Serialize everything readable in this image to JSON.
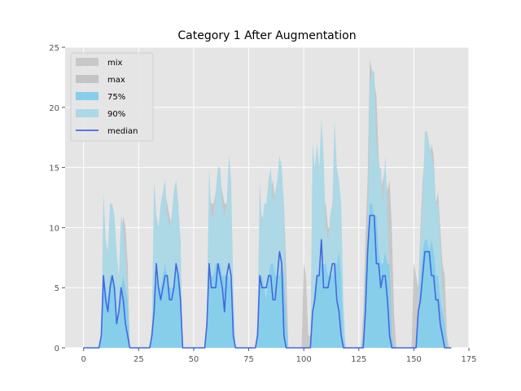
{
  "chart_data": {
    "type": "area",
    "title": "Category 1 After Augmentation",
    "xlabel": "",
    "ylabel": "",
    "xlim": [
      -8.4,
      175
    ],
    "ylim": [
      0,
      25
    ],
    "xticks": [
      0,
      25,
      50,
      75,
      100,
      125,
      150,
      175
    ],
    "yticks": [
      0,
      5,
      10,
      15,
      20,
      25
    ],
    "grid": true,
    "legend_position": "upper-left",
    "legend": [
      {
        "label": "mix",
        "kind": "patch",
        "series": "mix"
      },
      {
        "label": "max",
        "kind": "patch",
        "series": "max"
      },
      {
        "label": "75%",
        "kind": "patch",
        "series": "p75"
      },
      {
        "label": "90%",
        "kind": "patch",
        "series": "p90"
      },
      {
        "label": "median",
        "kind": "line",
        "series": "median"
      }
    ],
    "colors": {
      "background": "#e5e5e5",
      "grid": "#ffffff",
      "mix": "#c8c8c8",
      "max": "#c4c4c4",
      "p75": "#87ceeb",
      "p90": "#add8e6",
      "median": "#4169e1",
      "tick_text": "#555555"
    },
    "series": {
      "mix": {
        "x": [
          0,
          7,
          8,
          9,
          10,
          11,
          12,
          13,
          14,
          15,
          16,
          17,
          18,
          19,
          20,
          21,
          30,
          31,
          32,
          33,
          34,
          35,
          36,
          37,
          38,
          39,
          40,
          41,
          42,
          43,
          44,
          45,
          55,
          56,
          57,
          58,
          59,
          60,
          61,
          62,
          63,
          64,
          65,
          66,
          67,
          68,
          69,
          78,
          79,
          80,
          81,
          82,
          83,
          84,
          85,
          86,
          87,
          88,
          89,
          90,
          91,
          92,
          93,
          99,
          100,
          101,
          102,
          103,
          104,
          105,
          106,
          107,
          108,
          109,
          110,
          111,
          112,
          113,
          114,
          115,
          116,
          117,
          118,
          119,
          126,
          127,
          128,
          129,
          130,
          131,
          132,
          133,
          134,
          135,
          136,
          137,
          138,
          139,
          140,
          141,
          142,
          149,
          150,
          151,
          152,
          153,
          154,
          155,
          156,
          157,
          158,
          159,
          160,
          161,
          162,
          163,
          164,
          165,
          166,
          167
        ],
        "y": [
          0,
          0,
          1,
          7,
          7,
          6,
          8,
          8,
          8,
          6,
          4,
          7,
          8,
          7,
          6,
          0,
          0,
          2,
          8,
          8,
          7,
          7,
          8,
          9,
          9,
          8,
          7,
          7,
          9,
          8,
          6,
          0,
          0,
          3,
          9,
          9,
          9,
          10,
          10,
          10,
          9,
          9,
          9,
          9,
          8,
          3,
          0,
          0,
          2,
          8,
          8,
          7,
          6,
          8,
          9,
          10,
          8,
          9,
          9,
          10,
          8,
          5,
          0,
          0,
          7,
          6,
          1,
          1,
          4,
          6,
          7,
          7,
          8,
          8,
          8,
          7,
          7,
          7,
          8,
          8,
          9,
          6,
          2,
          0,
          0,
          2,
          6,
          9,
          13,
          13,
          13,
          13,
          11,
          9,
          10,
          11,
          9,
          10,
          3,
          2,
          0,
          0,
          7,
          6,
          4,
          7,
          10,
          12,
          12,
          11,
          13,
          14,
          8,
          9,
          7,
          5,
          5,
          1,
          0,
          0
        ]
      },
      "max": {
        "x": [
          0,
          7,
          8,
          9,
          10,
          11,
          12,
          13,
          14,
          15,
          16,
          17,
          18,
          19,
          20,
          21,
          30,
          31,
          32,
          33,
          34,
          35,
          36,
          37,
          38,
          39,
          40,
          41,
          42,
          43,
          44,
          45,
          55,
          56,
          57,
          58,
          59,
          60,
          61,
          62,
          63,
          64,
          65,
          66,
          67,
          68,
          69,
          78,
          79,
          80,
          81,
          82,
          83,
          84,
          85,
          86,
          87,
          88,
          89,
          90,
          91,
          92,
          93,
          99,
          100,
          101,
          102,
          103,
          104,
          105,
          106,
          107,
          108,
          109,
          110,
          111,
          112,
          113,
          114,
          115,
          116,
          117,
          118,
          119,
          126,
          127,
          128,
          129,
          130,
          131,
          132,
          133,
          134,
          135,
          136,
          137,
          138,
          139,
          140,
          141,
          142,
          149,
          150,
          151,
          152,
          153,
          154,
          155,
          156,
          157,
          158,
          159,
          160,
          161,
          162,
          163,
          164,
          165,
          166,
          167
        ],
        "y": [
          0,
          0,
          1,
          9,
          8,
          7,
          9,
          10,
          9,
          6,
          4,
          8,
          11,
          10,
          7,
          0,
          0,
          2,
          12,
          11,
          10,
          10,
          12,
          13,
          12,
          11,
          10,
          11,
          13,
          11,
          9,
          0,
          0,
          3,
          13,
          12,
          12,
          13,
          14,
          14,
          13,
          12,
          12,
          12,
          11,
          4,
          0,
          0,
          2,
          12,
          11,
          10,
          9,
          12,
          13,
          14,
          12,
          13,
          13,
          14,
          12,
          7,
          0,
          0,
          5,
          5,
          1,
          1,
          5,
          9,
          10,
          10,
          11,
          12,
          12,
          10,
          10,
          10,
          12,
          12,
          13,
          9,
          3,
          0,
          0,
          3,
          9,
          14,
          24,
          23,
          22,
          21,
          16,
          13,
          14,
          15,
          13,
          14,
          10,
          3,
          0,
          0,
          7,
          6,
          5,
          10,
          14,
          16,
          16,
          15,
          17,
          16,
          12,
          13,
          10,
          7,
          6,
          1,
          0,
          0
        ]
      },
      "p75": {
        "x": [
          0,
          7,
          8,
          9,
          10,
          11,
          12,
          13,
          14,
          15,
          16,
          17,
          18,
          19,
          20,
          21,
          30,
          31,
          32,
          33,
          34,
          35,
          36,
          37,
          38,
          39,
          40,
          41,
          42,
          43,
          44,
          45,
          55,
          56,
          57,
          58,
          59,
          60,
          61,
          62,
          63,
          64,
          65,
          66,
          67,
          68,
          69,
          78,
          79,
          80,
          81,
          82,
          83,
          84,
          85,
          86,
          87,
          88,
          89,
          90,
          91,
          92,
          93,
          99,
          100,
          101,
          102,
          103,
          104,
          105,
          106,
          107,
          108,
          109,
          110,
          111,
          112,
          113,
          114,
          115,
          116,
          117,
          118,
          119,
          126,
          127,
          128,
          129,
          130,
          131,
          132,
          133,
          134,
          135,
          136,
          137,
          138,
          139,
          140,
          141,
          142,
          149,
          150,
          151,
          152,
          153,
          154,
          155,
          156,
          157,
          158,
          159,
          160,
          161,
          162,
          163,
          164,
          165,
          166,
          167
        ],
        "y": [
          0,
          0,
          1,
          6,
          5,
          4,
          6,
          6,
          5,
          3,
          2,
          5,
          6,
          5,
          4,
          0,
          0,
          1,
          5,
          6,
          5,
          5,
          6,
          7,
          6,
          5,
          5,
          5,
          7,
          6,
          5,
          0,
          0,
          2,
          6,
          6,
          6,
          7,
          7,
          7,
          6,
          6,
          6,
          6,
          5,
          1,
          0,
          0,
          1,
          6,
          6,
          5,
          4,
          6,
          7,
          7,
          6,
          6,
          6,
          7,
          6,
          3,
          0,
          0,
          0,
          0,
          0,
          0,
          3,
          5,
          6,
          6,
          7,
          7,
          7,
          6,
          6,
          6,
          7,
          7,
          8,
          6,
          1,
          0,
          0,
          1,
          6,
          9,
          12,
          12,
          11,
          11,
          8,
          7,
          7,
          8,
          7,
          7,
          1,
          0,
          0,
          0,
          0,
          0,
          3,
          6,
          8,
          9,
          9,
          8,
          9,
          8,
          6,
          6,
          4,
          3,
          2,
          0,
          0,
          0
        ]
      },
      "p90": {
        "x": [
          0,
          7,
          8,
          9,
          10,
          11,
          12,
          13,
          14,
          15,
          16,
          17,
          18,
          19,
          20,
          21,
          30,
          31,
          32,
          33,
          34,
          35,
          36,
          37,
          38,
          39,
          40,
          41,
          42,
          43,
          44,
          45,
          55,
          56,
          57,
          58,
          59,
          60,
          61,
          62,
          63,
          64,
          65,
          66,
          67,
          68,
          69,
          78,
          79,
          80,
          81,
          82,
          83,
          84,
          85,
          86,
          87,
          88,
          89,
          90,
          91,
          92,
          93,
          99,
          100,
          101,
          102,
          103,
          104,
          105,
          106,
          107,
          108,
          109,
          110,
          111,
          112,
          113,
          114,
          115,
          116,
          117,
          118,
          119,
          126,
          127,
          128,
          129,
          130,
          131,
          132,
          133,
          134,
          135,
          136,
          137,
          138,
          139,
          140,
          141,
          142,
          149,
          150,
          151,
          152,
          153,
          154,
          155,
          156,
          157,
          158,
          159,
          160,
          161,
          162,
          163,
          164,
          165,
          166,
          167
        ],
        "y": [
          0,
          0,
          1,
          13,
          9,
          8,
          12,
          12,
          11,
          8,
          6,
          11,
          10,
          8,
          4,
          0,
          0,
          2,
          14,
          11,
          10,
          12,
          13,
          14,
          11,
          10,
          11,
          13,
          14,
          12,
          9,
          0,
          0,
          3,
          15,
          11,
          11,
          13,
          15,
          15,
          12,
          11,
          12,
          16,
          14,
          5,
          0,
          0,
          2,
          14,
          10,
          12,
          12,
          14,
          15,
          12,
          13,
          14,
          16,
          15,
          12,
          2,
          0,
          0,
          0,
          0,
          0,
          0,
          17,
          15,
          17,
          15,
          19,
          16,
          10,
          9,
          11,
          12,
          19,
          15,
          14,
          12,
          4,
          0,
          0,
          0,
          2,
          8,
          22,
          23,
          23,
          17,
          15,
          15,
          12,
          16,
          12,
          4,
          0,
          0,
          0,
          0,
          0,
          0,
          3,
          9,
          12,
          18,
          18,
          17,
          16,
          15,
          12,
          12,
          9,
          5,
          2,
          0,
          0,
          0
        ]
      },
      "median": {
        "x": [
          0,
          7,
          8,
          9,
          10,
          11,
          12,
          13,
          14,
          15,
          16,
          17,
          18,
          19,
          20,
          21,
          30,
          31,
          32,
          33,
          34,
          35,
          36,
          37,
          38,
          39,
          40,
          41,
          42,
          43,
          44,
          45,
          55,
          56,
          57,
          58,
          59,
          60,
          61,
          62,
          63,
          64,
          65,
          66,
          67,
          68,
          69,
          78,
          79,
          80,
          81,
          82,
          83,
          84,
          85,
          86,
          87,
          88,
          89,
          90,
          91,
          92,
          93,
          99,
          100,
          101,
          102,
          103,
          104,
          105,
          106,
          107,
          108,
          109,
          110,
          111,
          112,
          113,
          114,
          115,
          116,
          117,
          118,
          119,
          126,
          127,
          128,
          129,
          130,
          131,
          132,
          133,
          134,
          135,
          136,
          137,
          138,
          139,
          140,
          141,
          142,
          149,
          150,
          151,
          152,
          153,
          154,
          155,
          156,
          157,
          158,
          159,
          160,
          161,
          162,
          163,
          164,
          165,
          166,
          167
        ],
        "y": [
          0,
          0,
          1,
          6,
          4,
          3,
          5,
          6,
          5,
          2,
          3,
          5,
          4,
          2,
          1,
          0,
          0,
          1,
          3,
          7,
          5,
          4,
          5,
          6,
          6,
          4,
          4,
          5,
          7,
          6,
          4,
          0,
          0,
          2,
          7,
          5,
          5,
          5,
          7,
          6,
          5,
          3,
          6,
          7,
          6,
          1,
          0,
          0,
          1,
          6,
          5,
          5,
          5,
          6,
          6,
          4,
          4,
          6,
          8,
          7,
          1,
          0,
          0,
          0,
          0,
          0,
          0,
          0,
          3,
          4,
          6,
          6,
          9,
          5,
          5,
          5,
          6,
          7,
          7,
          4,
          3,
          1,
          0,
          0,
          0,
          0,
          3,
          8,
          11,
          11,
          11,
          7,
          7,
          5,
          6,
          6,
          4,
          1,
          0,
          0,
          0,
          0,
          0,
          0,
          3,
          4,
          6,
          8,
          8,
          8,
          6,
          6,
          4,
          4,
          2,
          1,
          0,
          0,
          0,
          0
        ]
      }
    }
  }
}
